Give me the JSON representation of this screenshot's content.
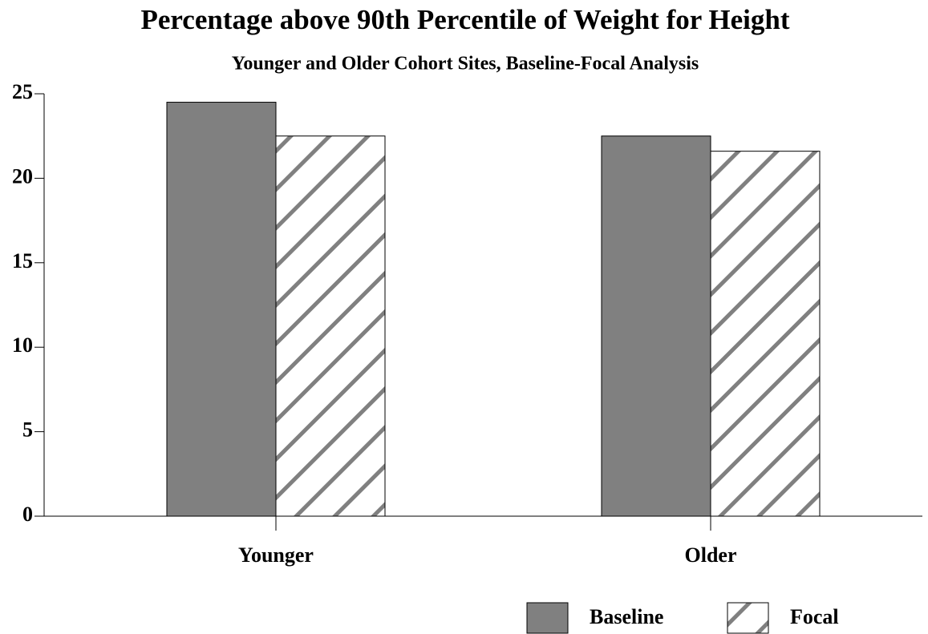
{
  "chart_data": {
    "type": "bar",
    "title": "Percentage above 90th Percentile of Weight for Height",
    "subtitle": "Younger and Older Cohort Sites, Baseline-Focal Analysis",
    "categories": [
      "Younger",
      "Older"
    ],
    "series": [
      {
        "name": "Baseline",
        "color": "#808080",
        "values": [
          24.5,
          22.5
        ]
      },
      {
        "name": "Focal",
        "color": "#808080",
        "pattern": "hatch",
        "values": [
          22.5,
          21.6
        ]
      }
    ],
    "ylim": [
      0,
      25
    ],
    "yticks": [
      0,
      5,
      10,
      15,
      20,
      25
    ],
    "grid": false,
    "legend": "bottom-right"
  }
}
